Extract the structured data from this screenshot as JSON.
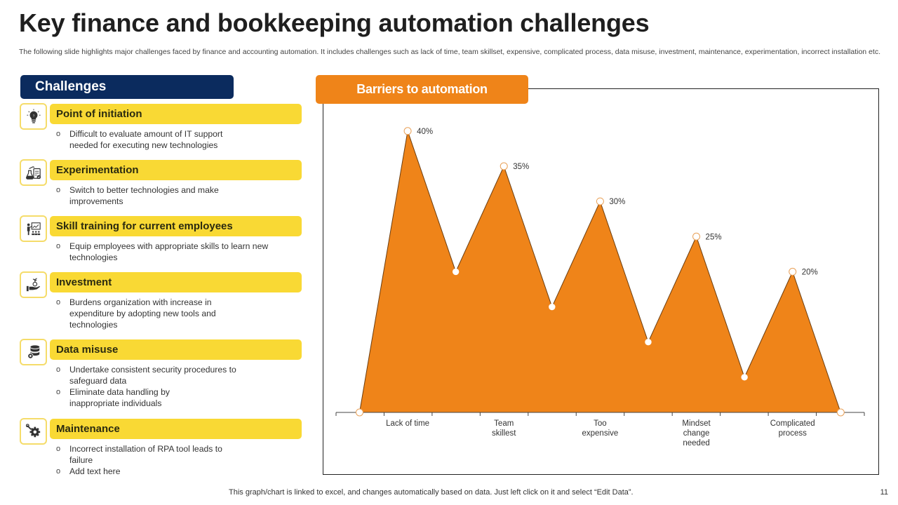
{
  "header": {
    "title": "Key finance and bookkeeping automation challenges",
    "subtitle": "The following slide highlights major challenges faced by finance and accounting automation. It includes challenges such as lack of time, team skillset, expensive, complicated process, data misuse, investment, maintenance, experimentation, incorrect installation etc."
  },
  "challenges": {
    "title": "Challenges",
    "items": [
      {
        "icon": "lightbulb-icon",
        "title": "Point of initiation",
        "bullets": [
          "Difficult to evaluate  amount of IT  support needed  for executing new technologies"
        ]
      },
      {
        "icon": "lab-flask-icon",
        "title": "Experimentation",
        "bullets": [
          "Switch to better technologies and make improvements"
        ]
      },
      {
        "icon": "presentation-training-icon",
        "title": "Skill training for current employees",
        "bullets": [
          "Equip employees  with  appropriate  skills to learn new technologies"
        ]
      },
      {
        "icon": "hand-plant-investment-icon",
        "title": "Investment",
        "bullets": [
          "Burdens  organization  with increase  in expenditure  by adopting  new tools and technologies"
        ]
      },
      {
        "icon": "database-gear-icon",
        "title": "Data misuse",
        "bullets": [
          "Undertake  consistent security procedures  to safeguard  data",
          "Eliminate data handling by inappropriate  individuals"
        ]
      },
      {
        "icon": "wrench-gear-icon",
        "title": "Maintenance",
        "bullets": [
          "Incorrect  installation  of RPA tool leads to failure",
          "Add text here"
        ]
      }
    ]
  },
  "chart": {
    "title": "Barriers to automation"
  },
  "chart_data": {
    "type": "area",
    "title": "Barriers to automation",
    "xlabel": "",
    "ylabel": "",
    "categories": [
      "Lack of time",
      "Team skillest",
      "Too expensive",
      "Mindset change needed",
      "Complicated process"
    ],
    "category_label_lines": [
      [
        "Lack of time"
      ],
      [
        "Team",
        "skillest"
      ],
      [
        "Too",
        "expensive"
      ],
      [
        "Mindset",
        "change",
        "needed"
      ],
      [
        "Complicated",
        "process"
      ]
    ],
    "series": [
      {
        "name": "Barriers",
        "points": [
          0,
          40,
          20,
          35,
          15,
          30,
          10,
          25,
          5,
          20,
          0
        ],
        "peak_values": [
          40,
          35,
          30,
          25,
          20
        ],
        "peak_labels": [
          "40%",
          "35%",
          "30%",
          "25%",
          "20%"
        ],
        "trough_values": [
          20,
          15,
          10,
          5
        ]
      }
    ],
    "ylim": [
      0,
      45
    ],
    "grid": false,
    "legend": "none",
    "colors": {
      "fill": "#ef8419",
      "stroke": "#6b3d10",
      "marker_fill": "#ffffff",
      "marker_stroke": "#e9a25a"
    }
  },
  "footer": {
    "note": "This graph/chart is linked to excel,  and changes automatically based on data. Just left click on it and select “Edit Data”.",
    "page_number": "11"
  }
}
